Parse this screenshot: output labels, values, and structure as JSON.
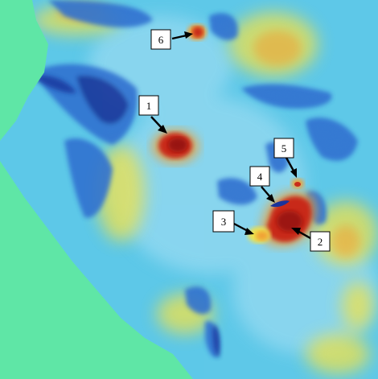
{
  "figure": {
    "colors": {
      "background": "#5fe6a6",
      "ground_cyan": "#5cc8e8",
      "ground_light": "#8fd8f0",
      "blue_dark": "#16309a",
      "blue_mid": "#2f6fd0",
      "yellow": "#f0e24a",
      "orange": "#f0a030",
      "red": "#c82818",
      "dark_red": "#8c1008"
    },
    "callouts": [
      {
        "label": "1"
      },
      {
        "label": "2"
      },
      {
        "label": "3"
      },
      {
        "label": "4"
      },
      {
        "label": "5"
      },
      {
        "label": "6"
      }
    ]
  }
}
